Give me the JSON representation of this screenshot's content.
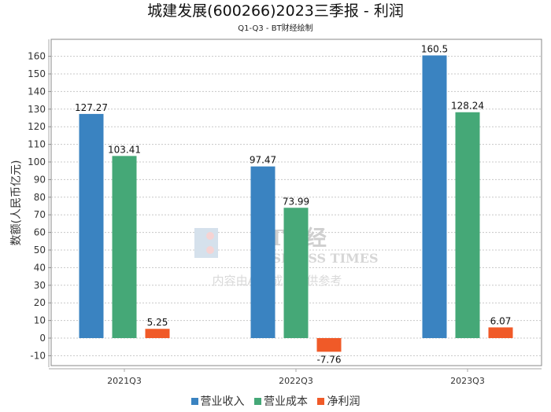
{
  "title": "城建发展(600266)2023三季报 - 利润",
  "subtitle": "Q1-Q3 - BT财经绘制",
  "watermark": {
    "logo_text": "BT财经",
    "logo_sub": "BUSINESS TIMES",
    "note": "内容由AI生成，仅供参考"
  },
  "chart_data": {
    "type": "bar",
    "title": "城建发展(600266)2023三季报 - 利润",
    "subtitle": "Q1-Q3 - BT财经绘制",
    "xlabel": "",
    "ylabel": "数额(人民币亿元)",
    "categories": [
      "2021Q3",
      "2022Q3",
      "2023Q3"
    ],
    "series": [
      {
        "name": "营业收入",
        "color": "#3a83c1",
        "values": [
          127.27,
          97.47,
          160.5
        ],
        "labels": [
          "127.27",
          "97.47",
          "160.5"
        ]
      },
      {
        "name": "营业成本",
        "color": "#45a877",
        "values": [
          103.41,
          73.99,
          128.24
        ],
        "labels": [
          "103.41",
          "73.99",
          "128.24"
        ]
      },
      {
        "name": "净利润",
        "color": "#f05a28",
        "values": [
          5.25,
          -7.76,
          6.07
        ],
        "labels": [
          "5.25",
          "-7.76",
          "6.07"
        ]
      }
    ],
    "yticks": [
      -10,
      0,
      10,
      20,
      30,
      40,
      50,
      60,
      70,
      80,
      90,
      100,
      110,
      120,
      130,
      140,
      150,
      160
    ],
    "ylim": [
      -15,
      170
    ],
    "grid": true,
    "legend_position": "bottom"
  }
}
